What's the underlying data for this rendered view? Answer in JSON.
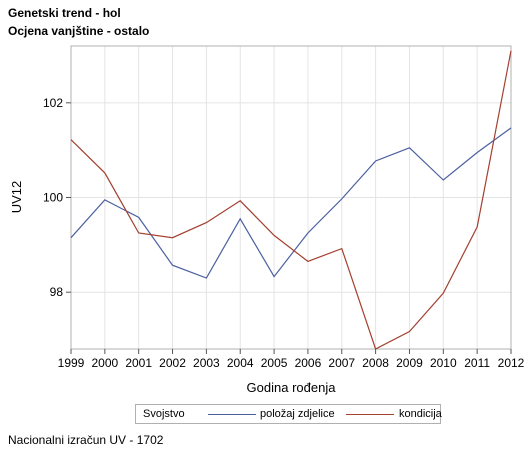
{
  "titles": {
    "line1": "Genetski trend - hol",
    "line2": "Ocjena vanjštine - ostalo"
  },
  "chart_data": {
    "type": "line",
    "xlabel": "Godina rođenja",
    "ylabel": "UV12",
    "x": [
      1999,
      2000,
      2001,
      2002,
      2003,
      2004,
      2005,
      2006,
      2007,
      2008,
      2009,
      2010,
      2011,
      2012
    ],
    "xlim": [
      1999,
      2012
    ],
    "ylim": [
      96.8,
      103.2
    ],
    "yticks": [
      98,
      100,
      102
    ],
    "grid": true,
    "legend_placement": "bottom",
    "legend_title": "Svojstvo",
    "series": [
      {
        "name": "položaj zdjelice",
        "color": "#4a5fa0",
        "values": [
          99.15,
          99.95,
          99.58,
          98.57,
          98.3,
          99.55,
          98.33,
          99.25,
          99.97,
          100.77,
          101.05,
          100.37,
          100.95,
          101.47
        ]
      },
      {
        "name": "kondicija",
        "color": "#a3402f",
        "values": [
          101.22,
          100.52,
          99.25,
          99.15,
          99.47,
          99.93,
          99.2,
          98.65,
          98.92,
          96.8,
          97.17,
          97.98,
          99.38,
          103.1
        ]
      }
    ]
  },
  "footnote": "Nacionalni izračun UV - 1702"
}
